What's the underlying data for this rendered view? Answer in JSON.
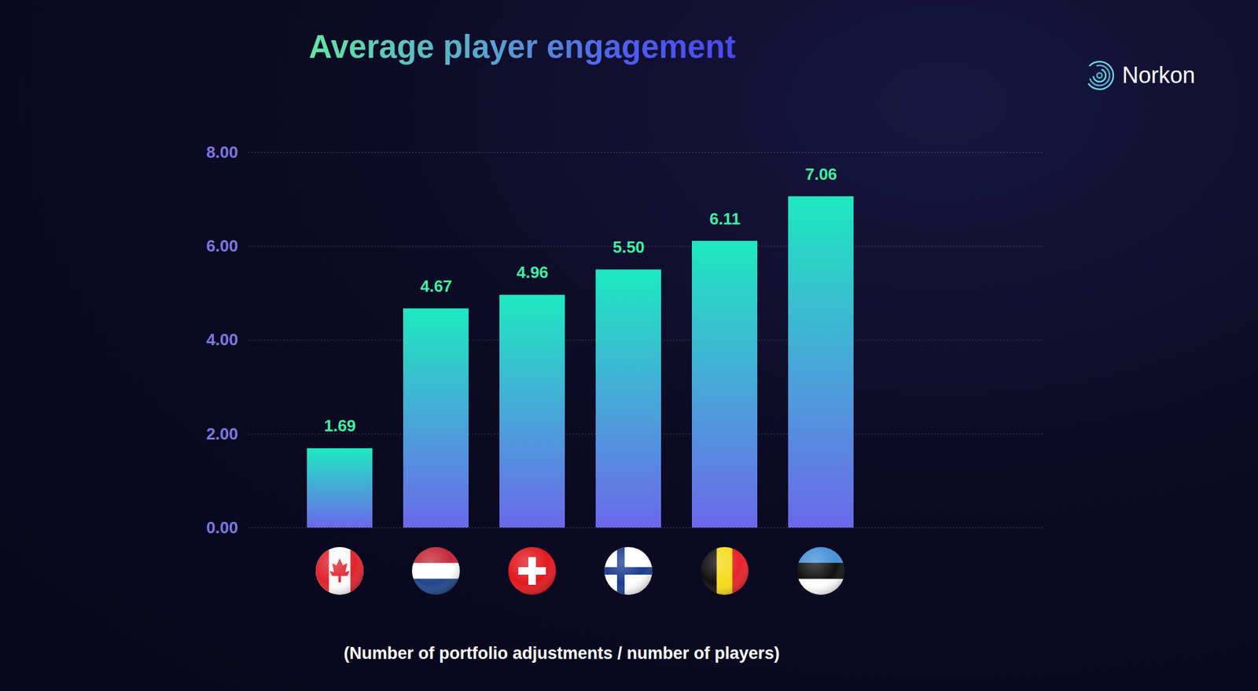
{
  "chart_data": {
    "type": "bar",
    "title": "Average player engagement",
    "xlabel": "(Number of portfolio adjustments / number of players)",
    "annotations": [
      "Norkon"
    ],
    "categories": [
      null,
      null,
      null,
      null,
      null,
      null
    ],
    "values": [
      1.69,
      4.67,
      4.96,
      5.5,
      6.11,
      7.06
    ],
    "value_labels": [
      "1.69",
      "4.67",
      "4.96",
      "5.50",
      "6.11",
      "7.06"
    ],
    "color": "#1de9c0",
    "ylim": [
      0,
      8
    ],
    "yticks": [
      {
        "value": 0,
        "label": "0.00"
      },
      {
        "value": 2,
        "label": "2.00"
      },
      {
        "value": 4,
        "label": "4.00"
      },
      {
        "value": 6,
        "label": "6.00"
      },
      {
        "value": 8,
        "label": "8.00"
      }
    ],
    "grid": true,
    "data_labels": true,
    "tick_labels": "y"
  }
}
